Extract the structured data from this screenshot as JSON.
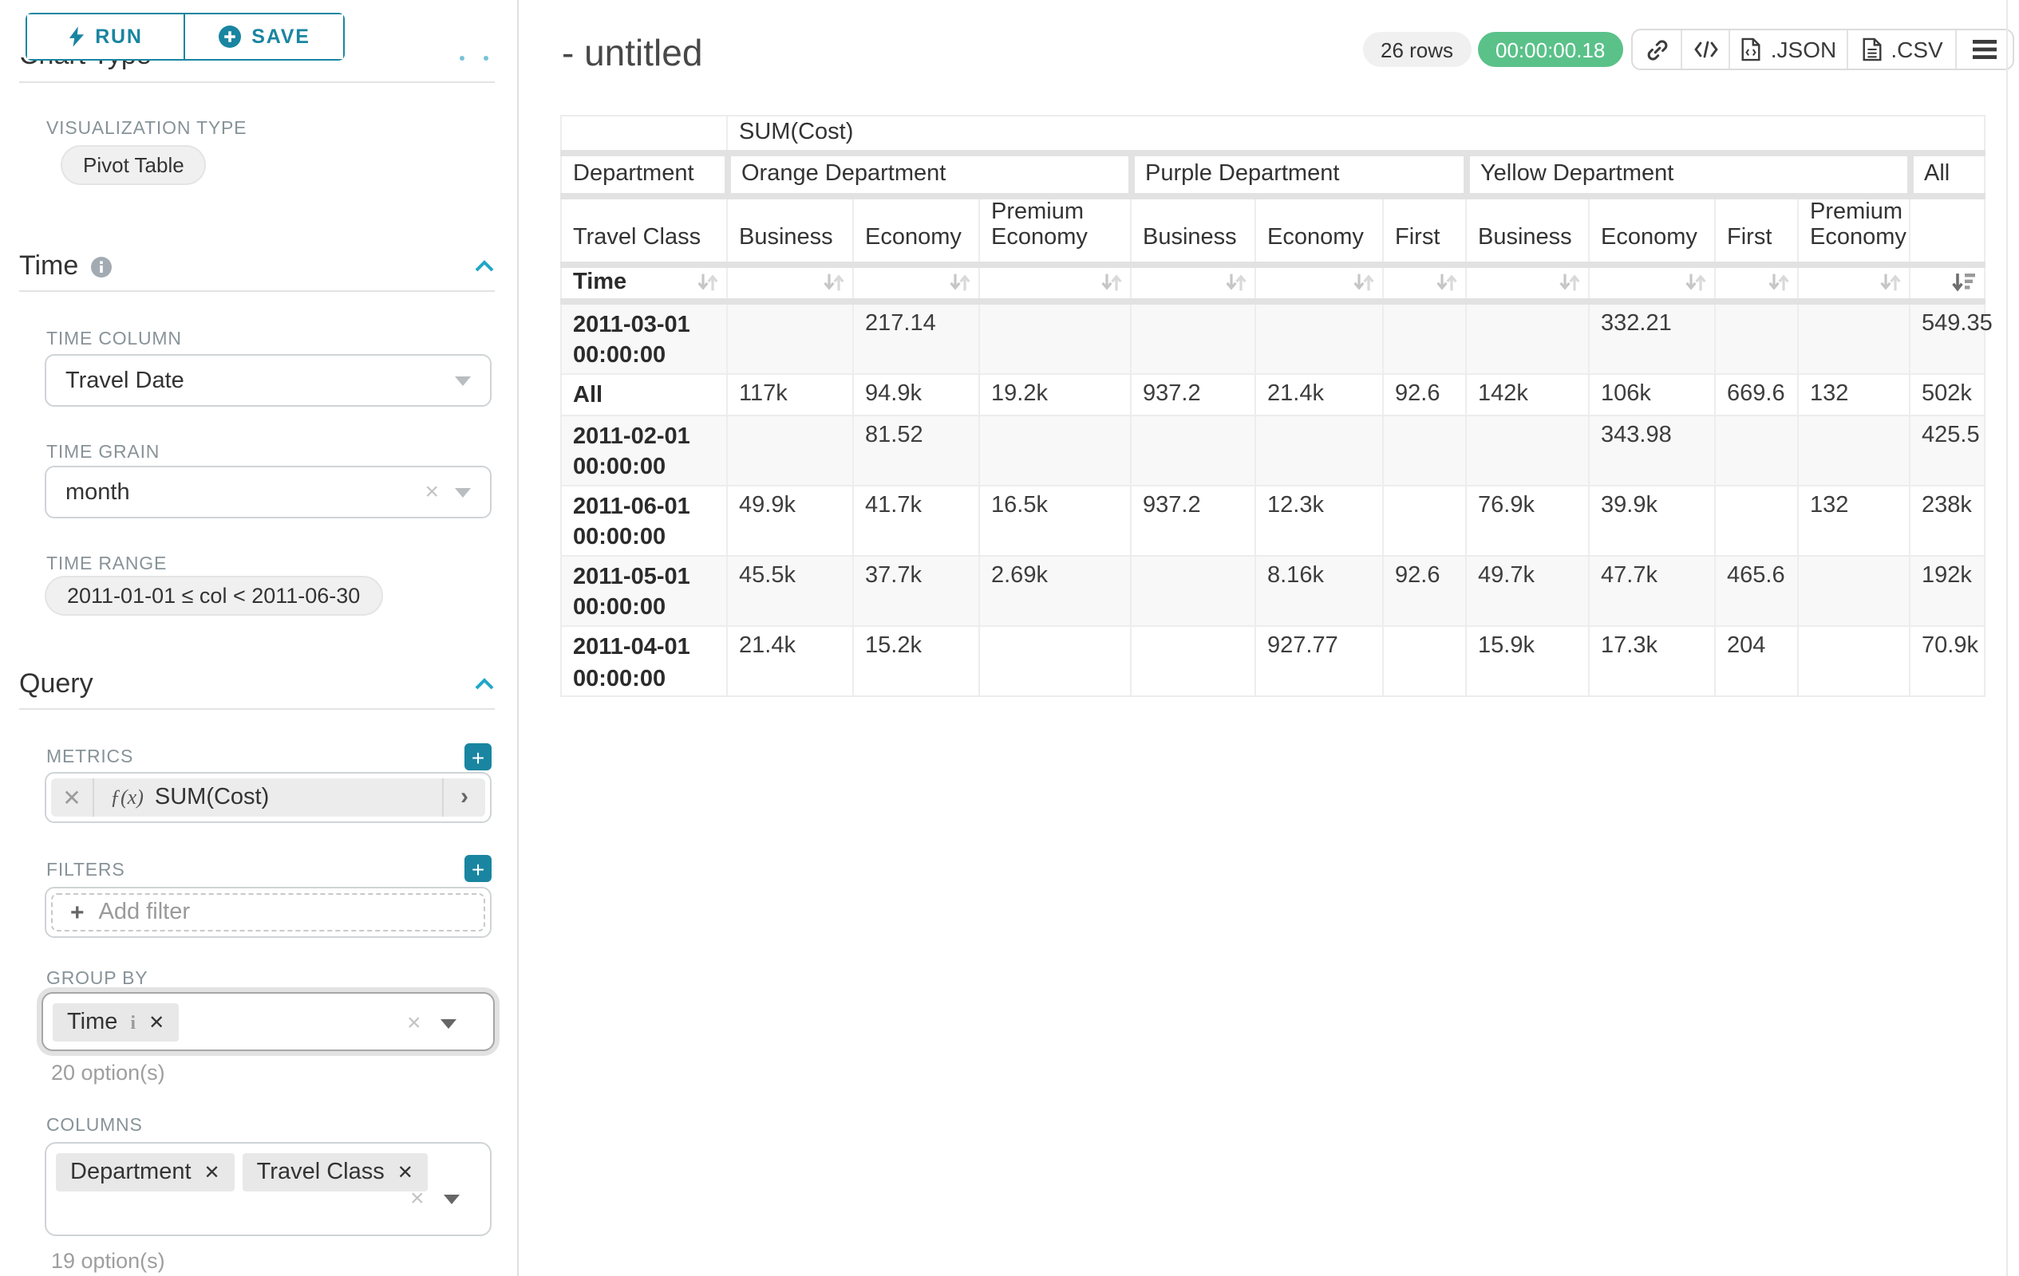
{
  "theme": {
    "accent": "#1985a0",
    "accent_bright": "#20a7c9",
    "success_green": "#5ac189",
    "pill_bg": "#f0f0f0",
    "label_gray": "#879399"
  },
  "sidebar": {
    "run_label": "RUN",
    "save_label": "SAVE",
    "clipped_heading": "Chart Type",
    "viz": {
      "label": "VISUALIZATION TYPE",
      "value": "Pivot Table"
    },
    "time": {
      "title": "Time",
      "column_label": "TIME COLUMN",
      "column_value": "Travel Date",
      "grain_label": "TIME GRAIN",
      "grain_value": "month",
      "range_label": "TIME RANGE",
      "range_value": "2011-01-01 ≤ col < 2011-06-30"
    },
    "query": {
      "title": "Query",
      "metrics_label": "METRICS",
      "metric_fx": "ƒ(x)",
      "metric_value": "SUM(Cost)",
      "filters_label": "FILTERS",
      "add_filter_label": "Add filter",
      "groupby_label": "GROUP BY",
      "groupby_chips": [
        {
          "label": "Time",
          "info": true
        }
      ],
      "groupby_hint": "20 option(s)",
      "columns_label": "COLUMNS",
      "columns_chips": [
        {
          "label": "Department"
        },
        {
          "label": "Travel Class"
        }
      ],
      "columns_hint": "19 option(s)"
    }
  },
  "header": {
    "title": "- untitled",
    "rows_badge": "26 rows",
    "timer_badge": "00:00:00.18",
    "export_json_label": ".JSON",
    "export_csv_label": ".CSV"
  },
  "pivot": {
    "metric_header": "SUM(Cost)",
    "dim_col_header": "Department",
    "dim_row_header": "Travel Class",
    "sort_row_label": "Time",
    "groups": [
      {
        "label": "Orange Department",
        "cols": [
          "Business",
          "Economy",
          "Premium Economy"
        ]
      },
      {
        "label": "Purple Department",
        "cols": [
          "Business",
          "Economy",
          "First"
        ]
      },
      {
        "label": "Yellow Department",
        "cols": [
          "Business",
          "Economy",
          "First",
          "Premium Economy"
        ]
      },
      {
        "label": "All",
        "cols": [
          ""
        ]
      }
    ],
    "rows": [
      {
        "label": "2011-03-01 00:00:00",
        "values": [
          "",
          "217.14",
          "",
          "",
          "",
          "",
          "",
          "332.21",
          "",
          "",
          "549.35"
        ]
      },
      {
        "label": "All",
        "values": [
          "117k",
          "94.9k",
          "19.2k",
          "937.2",
          "21.4k",
          "92.6",
          "142k",
          "106k",
          "669.6",
          "132",
          "502k"
        ]
      },
      {
        "label": "2011-02-01 00:00:00",
        "values": [
          "",
          "81.52",
          "",
          "",
          "",
          "",
          "",
          "343.98",
          "",
          "",
          "425.5"
        ]
      },
      {
        "label": "2011-06-01 00:00:00",
        "values": [
          "49.9k",
          "41.7k",
          "16.5k",
          "937.2",
          "12.3k",
          "",
          "76.9k",
          "39.9k",
          "",
          "132",
          "238k"
        ]
      },
      {
        "label": "2011-05-01 00:00:00",
        "values": [
          "45.5k",
          "37.7k",
          "2.69k",
          "",
          "8.16k",
          "92.6",
          "49.7k",
          "47.7k",
          "465.6",
          "",
          "192k"
        ]
      },
      {
        "label": "2011-04-01 00:00:00",
        "values": [
          "21.4k",
          "15.2k",
          "",
          "",
          "927.77",
          "",
          "15.9k",
          "17.3k",
          "204",
          "",
          "70.9k"
        ]
      }
    ]
  }
}
